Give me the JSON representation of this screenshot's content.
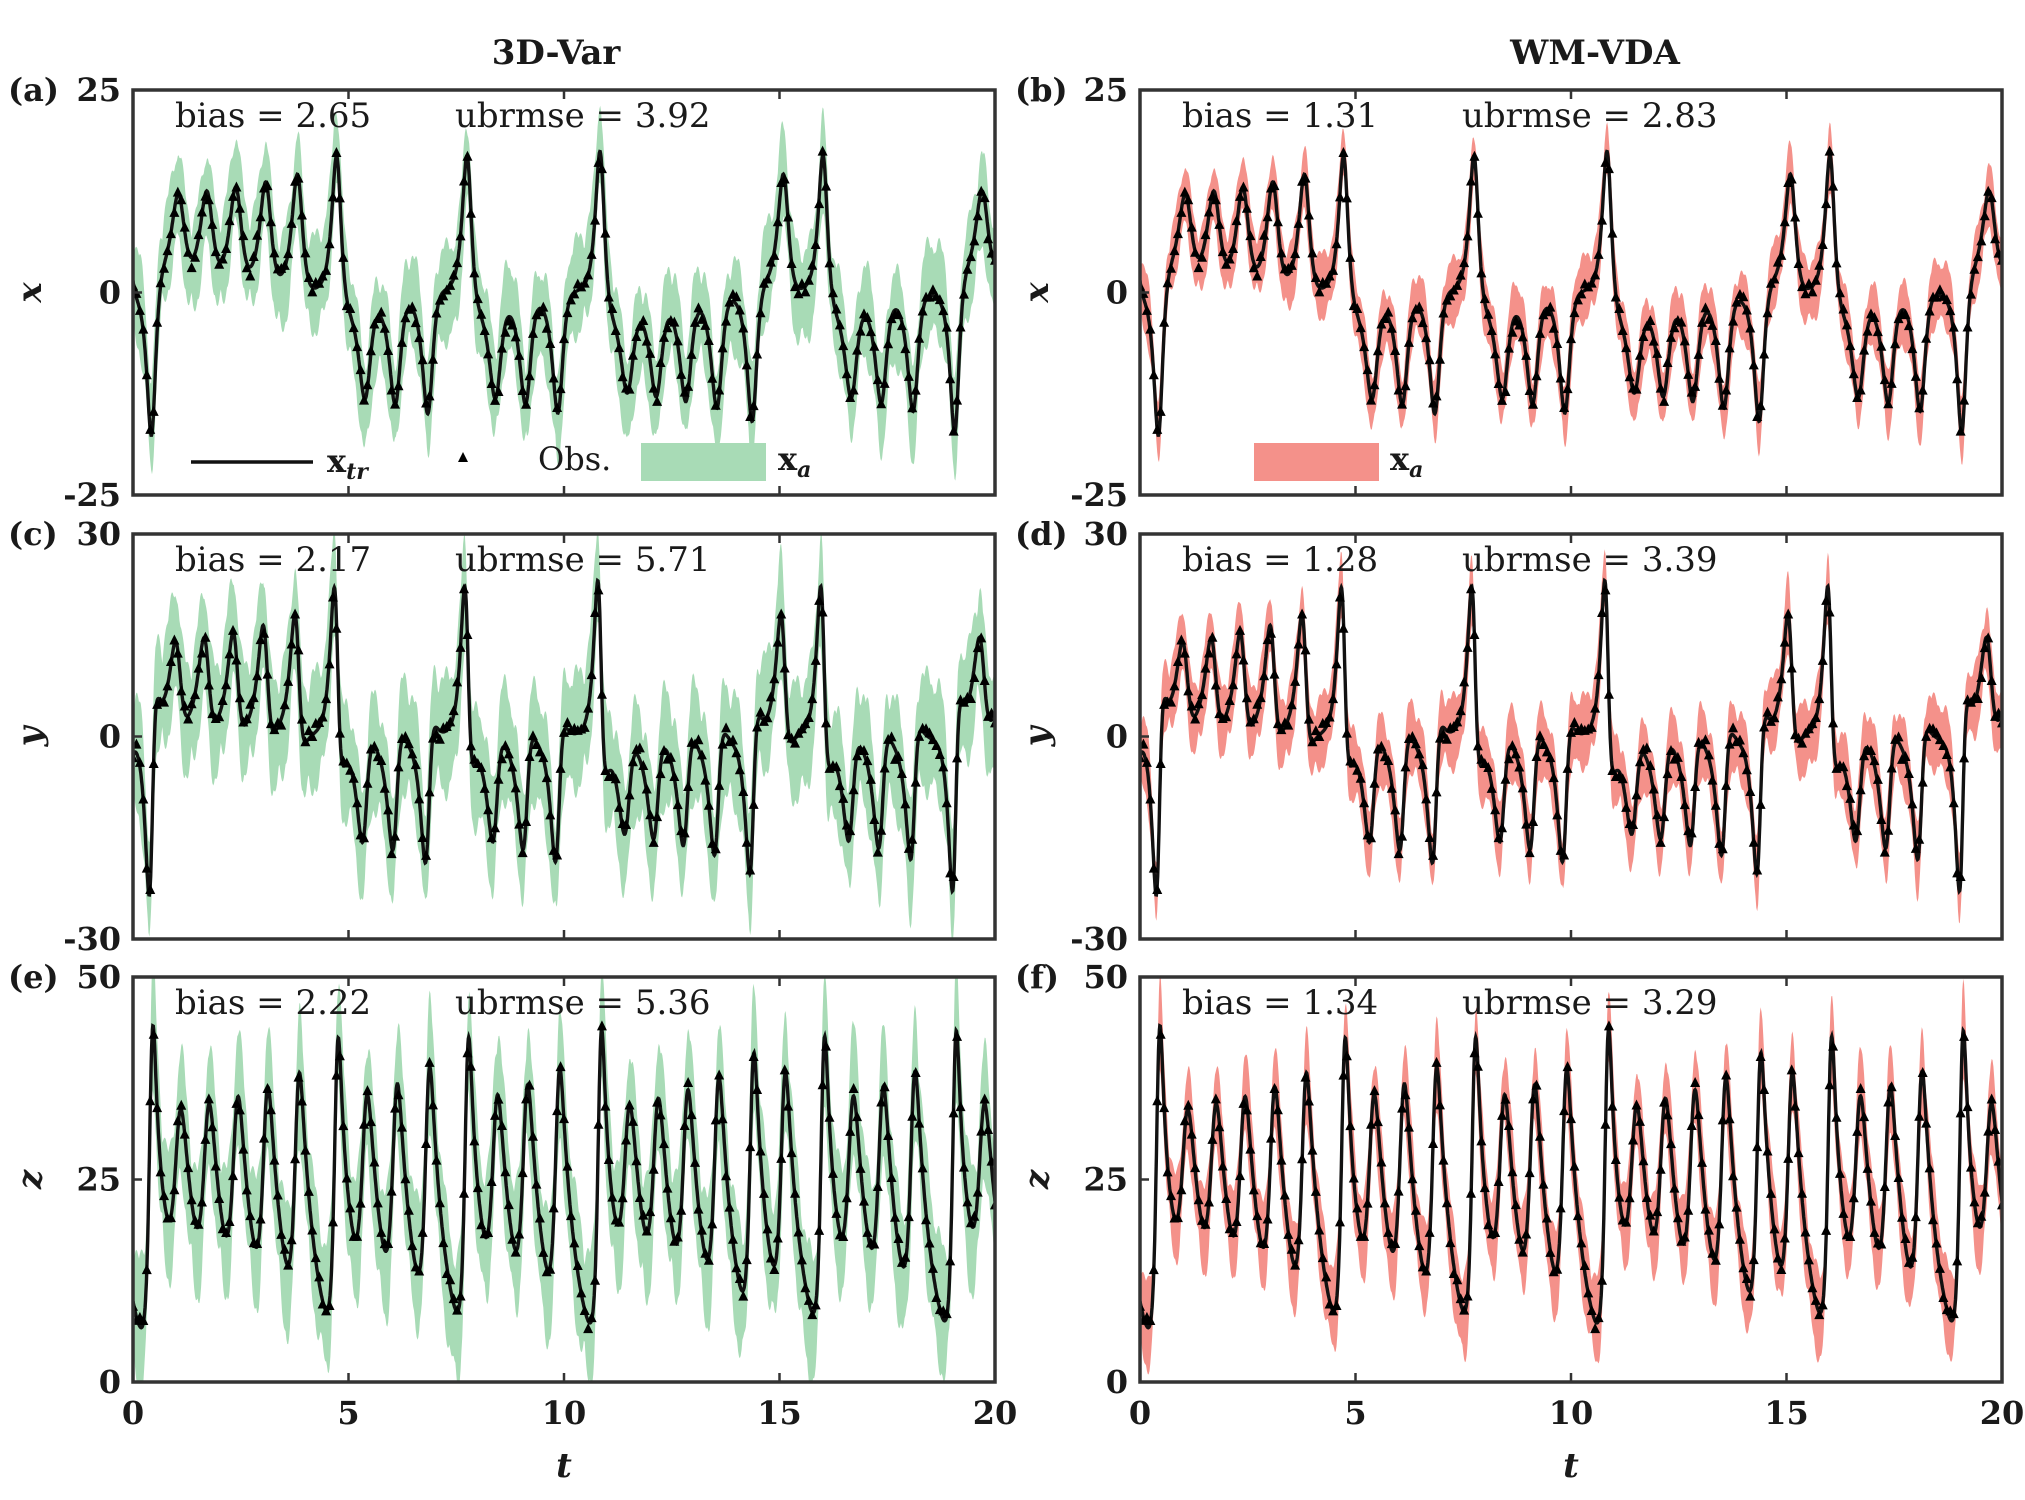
{
  "figure": {
    "column_titles": [
      "3D-Var",
      "WM-VDA"
    ],
    "xlabel": "t",
    "legend": {
      "truth_label": "x",
      "truth_sub": "tr",
      "obs_label": "Obs.",
      "analysis_label": "x",
      "analysis_sub": "a"
    },
    "colors": {
      "green": "#a8dbb6",
      "red": "#f4918a",
      "line": "#111111"
    }
  },
  "chart_data": [
    {
      "type": "line",
      "panel": "(a)",
      "method": "3D-Var",
      "variable": "x",
      "ylim": [
        -25,
        25
      ],
      "yticks": [
        "25",
        "0",
        "-25"
      ],
      "xlim": [
        0,
        20
      ],
      "xticks": [
        "0",
        "5",
        "10",
        "15",
        "20"
      ],
      "bias_text": "bias = 2.65",
      "ubrmse_text": "ubrmse = 3.92",
      "bias": 2.65,
      "ubrmse": 3.92,
      "band_color": "#a8dbb6",
      "band_halfwidth": 4.5,
      "legend": "full",
      "series": [
        "x_tr",
        "Obs.",
        "x_a"
      ]
    },
    {
      "type": "line",
      "panel": "(b)",
      "method": "WM-VDA",
      "variable": "x",
      "ylim": [
        -25,
        25
      ],
      "yticks": [
        "25",
        "0",
        "-25"
      ],
      "xlim": [
        0,
        20
      ],
      "xticks": [
        "0",
        "5",
        "10",
        "15",
        "20"
      ],
      "bias_text": "bias = 1.31",
      "ubrmse_text": "ubrmse = 2.83",
      "bias": 1.31,
      "ubrmse": 2.83,
      "band_color": "#f4918a",
      "band_halfwidth": 3.0,
      "legend": "analysis",
      "series": [
        "x_tr",
        "Obs.",
        "x_a"
      ]
    },
    {
      "type": "line",
      "panel": "(c)",
      "method": "3D-Var",
      "variable": "y",
      "ylim": [
        -30,
        30
      ],
      "yticks": [
        "30",
        "0",
        "-30"
      ],
      "xlim": [
        0,
        20
      ],
      "xticks": [
        "0",
        "5",
        "10",
        "15",
        "20"
      ],
      "bias_text": "bias = 2.17",
      "ubrmse_text": "ubrmse = 5.71",
      "bias": 2.17,
      "ubrmse": 5.71,
      "band_color": "#a8dbb6",
      "band_halfwidth": 6.5,
      "legend": "none",
      "series": [
        "x_tr",
        "Obs.",
        "x_a"
      ]
    },
    {
      "type": "line",
      "panel": "(d)",
      "method": "WM-VDA",
      "variable": "y",
      "ylim": [
        -30,
        30
      ],
      "yticks": [
        "30",
        "0",
        "-30"
      ],
      "xlim": [
        0,
        20
      ],
      "xticks": [
        "0",
        "5",
        "10",
        "15",
        "20"
      ],
      "bias_text": "bias = 1.28",
      "ubrmse_text": "ubrmse = 3.39",
      "bias": 1.28,
      "ubrmse": 3.39,
      "band_color": "#f4918a",
      "band_halfwidth": 4.0,
      "legend": "none",
      "series": [
        "x_tr",
        "Obs.",
        "x_a"
      ]
    },
    {
      "type": "line",
      "panel": "(e)",
      "method": "3D-Var",
      "variable": "z",
      "ylim": [
        0,
        50
      ],
      "yticks": [
        "50",
        "25",
        "0"
      ],
      "xlim": [
        0,
        20
      ],
      "xticks": [
        "0",
        "5",
        "10",
        "15",
        "20"
      ],
      "bias_text": "bias = 2.22",
      "ubrmse_text": "ubrmse = 5.36",
      "bias": 2.22,
      "ubrmse": 5.36,
      "band_color": "#a8dbb6",
      "band_halfwidth": 6.0,
      "legend": "none",
      "series": [
        "x_tr",
        "Obs.",
        "x_a"
      ]
    },
    {
      "type": "line",
      "panel": "(f)",
      "method": "WM-VDA",
      "variable": "z",
      "ylim": [
        0,
        50
      ],
      "yticks": [
        "50",
        "25",
        "0"
      ],
      "xlim": [
        0,
        20
      ],
      "xticks": [
        "0",
        "5",
        "10",
        "15",
        "20"
      ],
      "bias_text": "bias = 1.34",
      "ubrmse_text": "ubrmse = 3.29",
      "bias": 1.34,
      "ubrmse": 3.29,
      "band_color": "#f4918a",
      "band_halfwidth": 4.0,
      "legend": "none",
      "series": [
        "x_tr",
        "Obs.",
        "x_a"
      ]
    }
  ]
}
